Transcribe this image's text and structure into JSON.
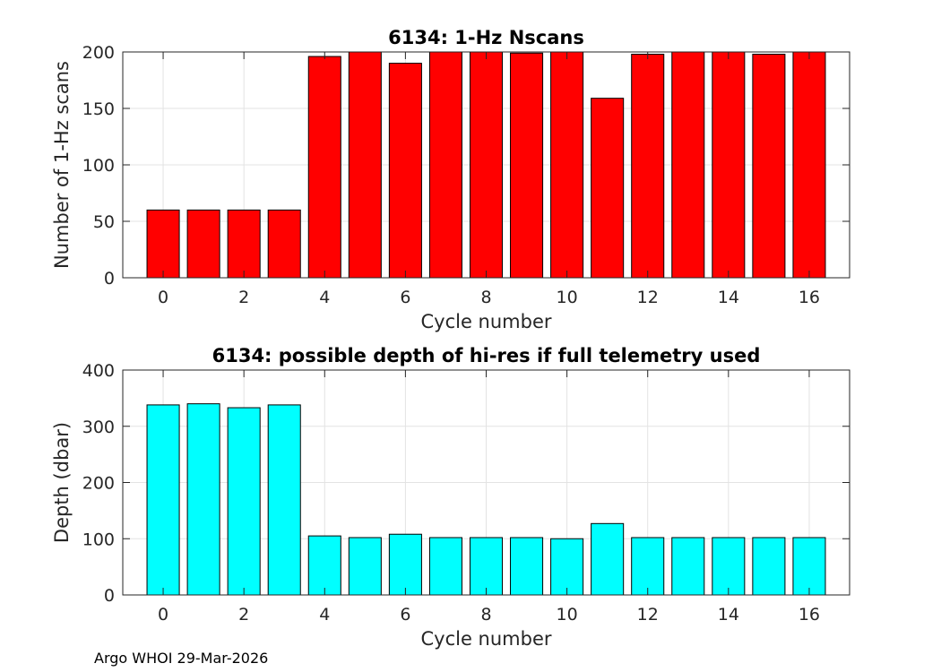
{
  "footer_text": "Argo WHOI 29-Mar-2026",
  "chart_data": [
    {
      "type": "bar",
      "title": "6134: 1-Hz Nscans",
      "xlabel": "Cycle number",
      "ylabel": "Number of 1-Hz scans",
      "x": [
        0,
        1,
        2,
        3,
        4,
        5,
        6,
        7,
        8,
        9,
        10,
        11,
        12,
        13,
        14,
        15,
        16
      ],
      "values": [
        60,
        60,
        60,
        60,
        196,
        201,
        190,
        201,
        201,
        199,
        201,
        159,
        198,
        201,
        201,
        198,
        201
      ],
      "xlim": [
        -1,
        17
      ],
      "ylim": [
        0,
        200
      ],
      "xticks": [
        0,
        2,
        4,
        6,
        8,
        10,
        12,
        14,
        16
      ],
      "yticks": [
        0,
        50,
        100,
        150,
        200
      ],
      "bar_color": "#ff0000",
      "grid": true
    },
    {
      "type": "bar",
      "title": "6134: possible depth of hi-res if full telemetry used",
      "xlabel": "Cycle number",
      "ylabel": "Depth (dbar)",
      "x": [
        0,
        1,
        2,
        3,
        4,
        5,
        6,
        7,
        8,
        9,
        10,
        11,
        12,
        13,
        14,
        15,
        16
      ],
      "values": [
        338,
        340,
        333,
        338,
        105,
        102,
        108,
        102,
        102,
        102,
        100,
        127,
        102,
        102,
        102,
        102,
        102
      ],
      "xlim": [
        -1,
        17
      ],
      "ylim": [
        0,
        400
      ],
      "xticks": [
        0,
        2,
        4,
        6,
        8,
        10,
        12,
        14,
        16
      ],
      "yticks": [
        0,
        100,
        200,
        300,
        400
      ],
      "bar_color": "#00ffff",
      "grid": true
    }
  ]
}
